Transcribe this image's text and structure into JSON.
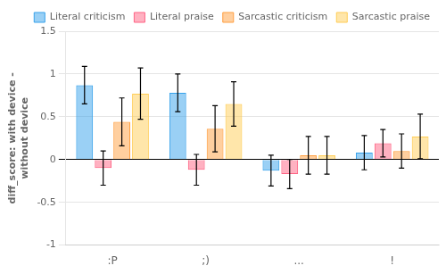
{
  "chart_data": {
    "type": "bar",
    "categories": [
      ":P",
      ";)",
      "...",
      "!"
    ],
    "series": [
      {
        "name": "Literal criticism",
        "values": [
          0.87,
          0.78,
          -0.13,
          0.08
        ],
        "errors": [
          0.22,
          0.22,
          0.18,
          0.2
        ]
      },
      {
        "name": "Literal praise",
        "values": [
          -0.1,
          -0.12,
          -0.17,
          0.19
        ],
        "errors": [
          0.2,
          0.18,
          0.17,
          0.16
        ]
      },
      {
        "name": "Sarcastic criticism",
        "values": [
          0.44,
          0.36,
          0.05,
          0.1
        ],
        "errors": [
          0.28,
          0.27,
          0.22,
          0.2
        ]
      },
      {
        "name": "Sarcastic praise",
        "values": [
          0.77,
          0.65,
          0.05,
          0.27
        ],
        "errors": [
          0.3,
          0.26,
          0.22,
          0.26
        ]
      }
    ],
    "ylabel": "diff_score: with device -\nwithout device",
    "ylim": [
      -1.0,
      1.5
    ],
    "yticks": [
      -1,
      -0.5,
      0,
      0.5,
      1,
      1.5
    ],
    "grid": true,
    "legend": "upper right"
  }
}
